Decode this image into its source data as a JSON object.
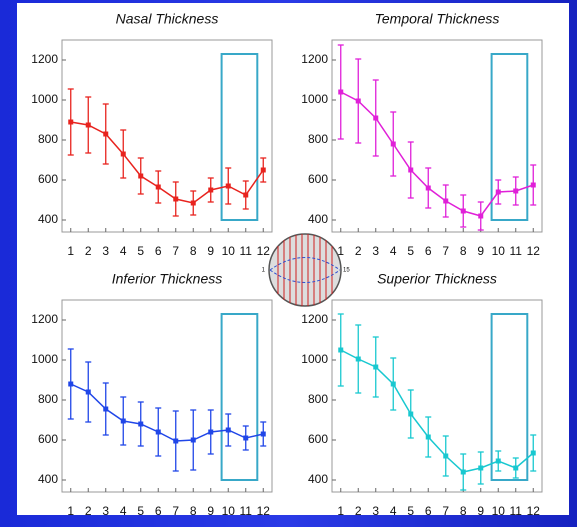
{
  "chart_data": [
    {
      "type": "line",
      "title": "Nasal Thickness",
      "x": [
        1,
        2,
        3,
        4,
        5,
        6,
        7,
        8,
        9,
        10,
        11,
        12
      ],
      "xlim": [
        0.5,
        12.5
      ],
      "xticks": [
        1,
        2,
        3,
        4,
        5,
        6,
        7,
        8,
        9,
        10,
        11,
        12
      ],
      "ylim": [
        340,
        1300
      ],
      "yticks": [
        400,
        600,
        800,
        1000,
        1200
      ],
      "series": [
        {
          "color": "#e8231e",
          "values": [
            890,
            875,
            830,
            730,
            620,
            565,
            505,
            485,
            550,
            570,
            525,
            650
          ],
          "errors": [
            165,
            140,
            150,
            120,
            90,
            80,
            85,
            60,
            60,
            90,
            70,
            60
          ]
        }
      ]
    },
    {
      "type": "line",
      "title": "Temporal Thickness",
      "x": [
        1,
        2,
        3,
        4,
        5,
        6,
        7,
        8,
        9,
        10,
        11,
        12
      ],
      "xlim": [
        0.5,
        12.5
      ],
      "xticks": [
        1,
        2,
        3,
        4,
        5,
        6,
        7,
        8,
        9,
        10,
        11,
        12
      ],
      "ylim": [
        340,
        1300
      ],
      "yticks": [
        400,
        600,
        800,
        1000,
        1200
      ],
      "series": [
        {
          "color": "#e020d8",
          "values": [
            1040,
            995,
            910,
            780,
            650,
            560,
            495,
            445,
            420,
            540,
            545,
            575
          ],
          "errors": [
            235,
            210,
            190,
            160,
            140,
            100,
            80,
            80,
            70,
            60,
            70,
            100
          ]
        }
      ]
    },
    {
      "type": "line",
      "title": "Inferior Thickness",
      "x": [
        1,
        2,
        3,
        4,
        5,
        6,
        7,
        8,
        9,
        10,
        11,
        12
      ],
      "xlim": [
        0.5,
        12.5
      ],
      "xticks": [
        1,
        2,
        3,
        4,
        5,
        6,
        7,
        8,
        9,
        10,
        11,
        12
      ],
      "ylim": [
        340,
        1300
      ],
      "yticks": [
        400,
        600,
        800,
        1000,
        1200
      ],
      "series": [
        {
          "color": "#2046e8",
          "values": [
            880,
            840,
            755,
            695,
            680,
            640,
            595,
            600,
            640,
            650,
            610,
            630
          ],
          "errors": [
            175,
            150,
            130,
            120,
            110,
            120,
            150,
            150,
            110,
            80,
            60,
            60
          ]
        }
      ]
    },
    {
      "type": "line",
      "title": "Superior Thickness",
      "x": [
        1,
        2,
        3,
        4,
        5,
        6,
        7,
        8,
        9,
        10,
        11,
        12
      ],
      "xlim": [
        0.5,
        12.5
      ],
      "xticks": [
        1,
        2,
        3,
        4,
        5,
        6,
        7,
        8,
        9,
        10,
        11,
        12
      ],
      "ylim": [
        340,
        1300
      ],
      "yticks": [
        400,
        600,
        800,
        1000,
        1200
      ],
      "series": [
        {
          "color": "#18c8d0",
          "values": [
            1050,
            1005,
            965,
            880,
            730,
            615,
            520,
            440,
            460,
            495,
            460,
            535
          ],
          "errors": [
            180,
            170,
            150,
            130,
            120,
            100,
            100,
            90,
            80,
            50,
            50,
            90
          ]
        }
      ]
    }
  ],
  "diagram": {
    "left_label": "1",
    "right_label": "15"
  }
}
